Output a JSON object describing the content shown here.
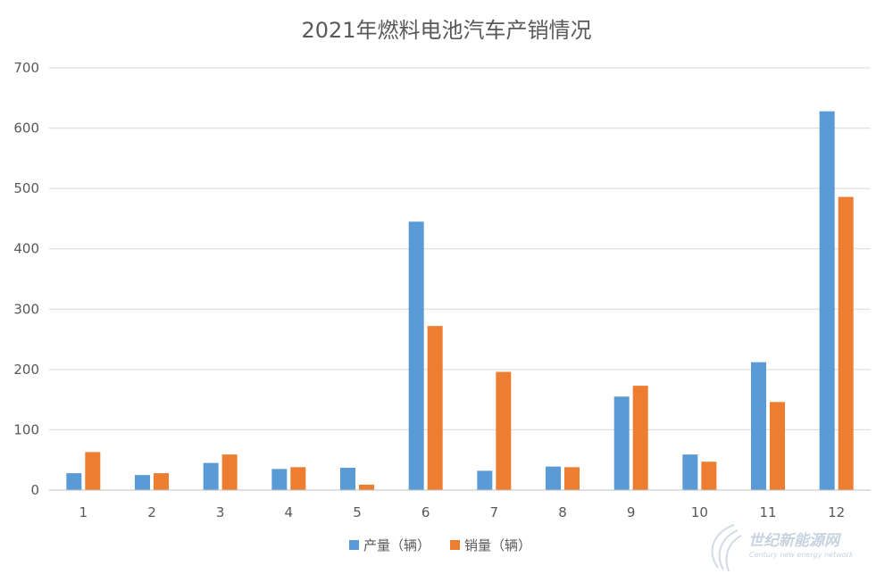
{
  "chart_data": {
    "type": "bar",
    "title": "2021年燃料电池汽车产销情况",
    "categories": [
      "1",
      "2",
      "3",
      "4",
      "5",
      "6",
      "7",
      "8",
      "9",
      "10",
      "11",
      "12"
    ],
    "series": [
      {
        "name": "产量（辆）",
        "color": "#5B9BD5",
        "values": [
          28,
          25,
          45,
          35,
          37,
          445,
          32,
          39,
          155,
          59,
          212,
          628
        ]
      },
      {
        "name": "销量（辆）",
        "color": "#ED7D31",
        "values": [
          63,
          28,
          59,
          38,
          9,
          272,
          196,
          38,
          173,
          47,
          146,
          486
        ]
      }
    ],
    "ylim": [
      0,
      700
    ],
    "yticks": [
      0,
      100,
      200,
      300,
      400,
      500,
      600,
      700
    ],
    "grid": true,
    "legend": "bottom"
  },
  "watermark": {
    "name": "世纪新能源网",
    "sub": "Century new energy network"
  }
}
